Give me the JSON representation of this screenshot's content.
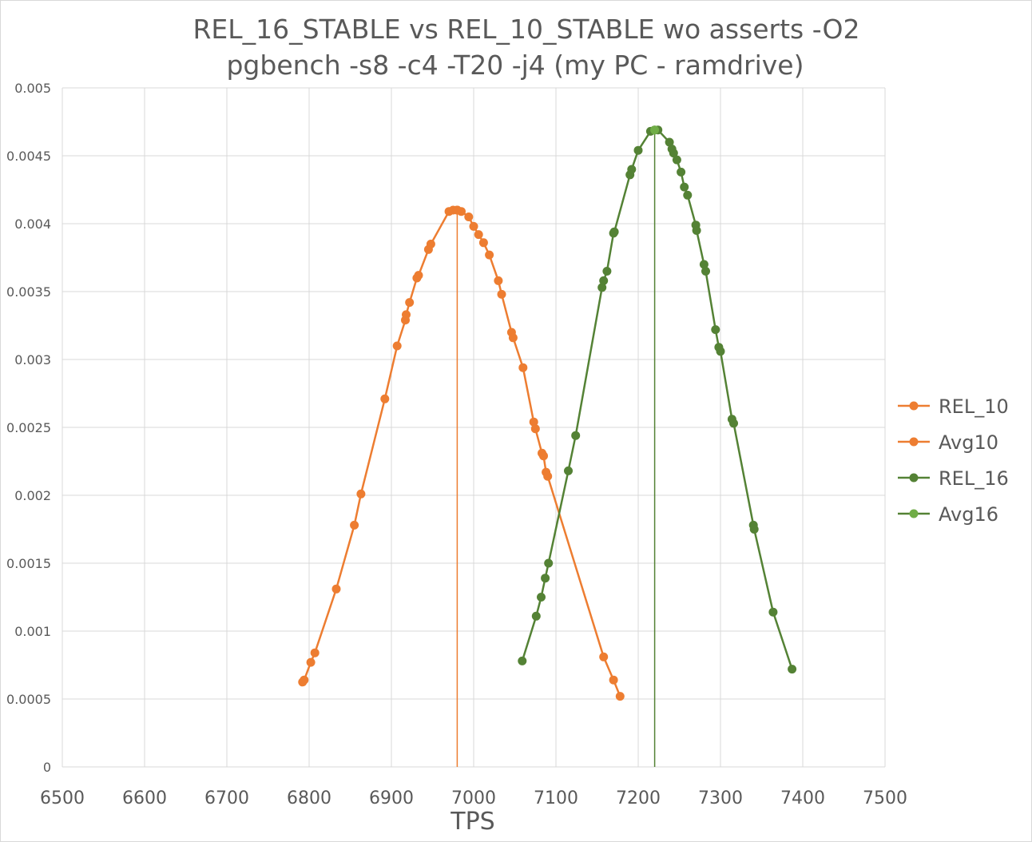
{
  "chart_data": {
    "type": "scatter",
    "title": [
      "REL_16_STABLE vs REL_10_STABLE wo asserts -O2",
      "pgbench -s8 -c4 -T20 -j4    (my PC - ramdrive)"
    ],
    "xlabel": "TPS",
    "ylabel": "",
    "xlim": [
      6500,
      7500
    ],
    "ylim": [
      0,
      0.005
    ],
    "x_ticks": [
      "6500",
      "6600",
      "6700",
      "6800",
      "6900",
      "7000",
      "7100",
      "7200",
      "7300",
      "7400",
      "7500"
    ],
    "y_ticks": [
      "0",
      "0.0005",
      "0.001",
      "0.0015",
      "0.002",
      "0.0025",
      "0.003",
      "0.0035",
      "0.004",
      "0.0045",
      "0.005"
    ],
    "grid": true,
    "legend_position": "right",
    "series": [
      {
        "name": "REL_10",
        "color": "#ED7D31",
        "x": [
          6792,
          6794,
          6802,
          6807,
          6833,
          6855,
          6863,
          6892,
          6907,
          6917,
          6918,
          6922,
          6931,
          6933,
          6945,
          6948,
          6970,
          6975,
          6980,
          6985,
          6994,
          7000,
          7006,
          7012,
          7019,
          7030,
          7034,
          7046,
          7048,
          7060,
          7073,
          7075,
          7083,
          7085,
          7088,
          7090,
          7158,
          7170,
          7178
        ],
        "y": [
          0.000625,
          0.00064,
          0.00077,
          0.00084,
          0.00131,
          0.00178,
          0.00201,
          0.00271,
          0.0031,
          0.00329,
          0.00333,
          0.00342,
          0.0036,
          0.00362,
          0.00381,
          0.00385,
          0.00409,
          0.0041,
          0.0041,
          0.00409,
          0.00405,
          0.00398,
          0.00392,
          0.00386,
          0.00377,
          0.00358,
          0.00348,
          0.0032,
          0.00316,
          0.00294,
          0.00254,
          0.00249,
          0.00231,
          0.00229,
          0.00217,
          0.00214,
          0.00081,
          0.00064,
          0.00052
        ]
      },
      {
        "name": "Avg10",
        "color": "#ED7D31",
        "x": [
          6980,
          6980
        ],
        "y": [
          0,
          0.0041
        ]
      },
      {
        "name": "REL_16",
        "color": "#548235",
        "x": [
          7059,
          7076,
          7082,
          7087,
          7091,
          7115,
          7124,
          7156,
          7158,
          7162,
          7170,
          7171,
          7190,
          7192,
          7200,
          7215,
          7220,
          7224,
          7238,
          7241,
          7243,
          7247,
          7252,
          7256,
          7260,
          7270,
          7271,
          7280,
          7282,
          7294,
          7298,
          7300,
          7314,
          7316,
          7340,
          7341,
          7364,
          7387
        ],
        "y": [
          0.00078,
          0.00111,
          0.00125,
          0.00139,
          0.0015,
          0.00218,
          0.00244,
          0.00353,
          0.00358,
          0.00365,
          0.00393,
          0.00394,
          0.00436,
          0.0044,
          0.00454,
          0.00468,
          0.00469,
          0.00469,
          0.0046,
          0.00455,
          0.00452,
          0.00447,
          0.00438,
          0.00427,
          0.00421,
          0.00399,
          0.00395,
          0.0037,
          0.00365,
          0.00322,
          0.00309,
          0.00306,
          0.00256,
          0.00253,
          0.00178,
          0.00175,
          0.00114,
          0.00072
        ]
      },
      {
        "name": "Avg16",
        "color": "#70AD47",
        "x": [
          7220,
          7220
        ],
        "y": [
          0,
          0.00469
        ]
      }
    ]
  }
}
